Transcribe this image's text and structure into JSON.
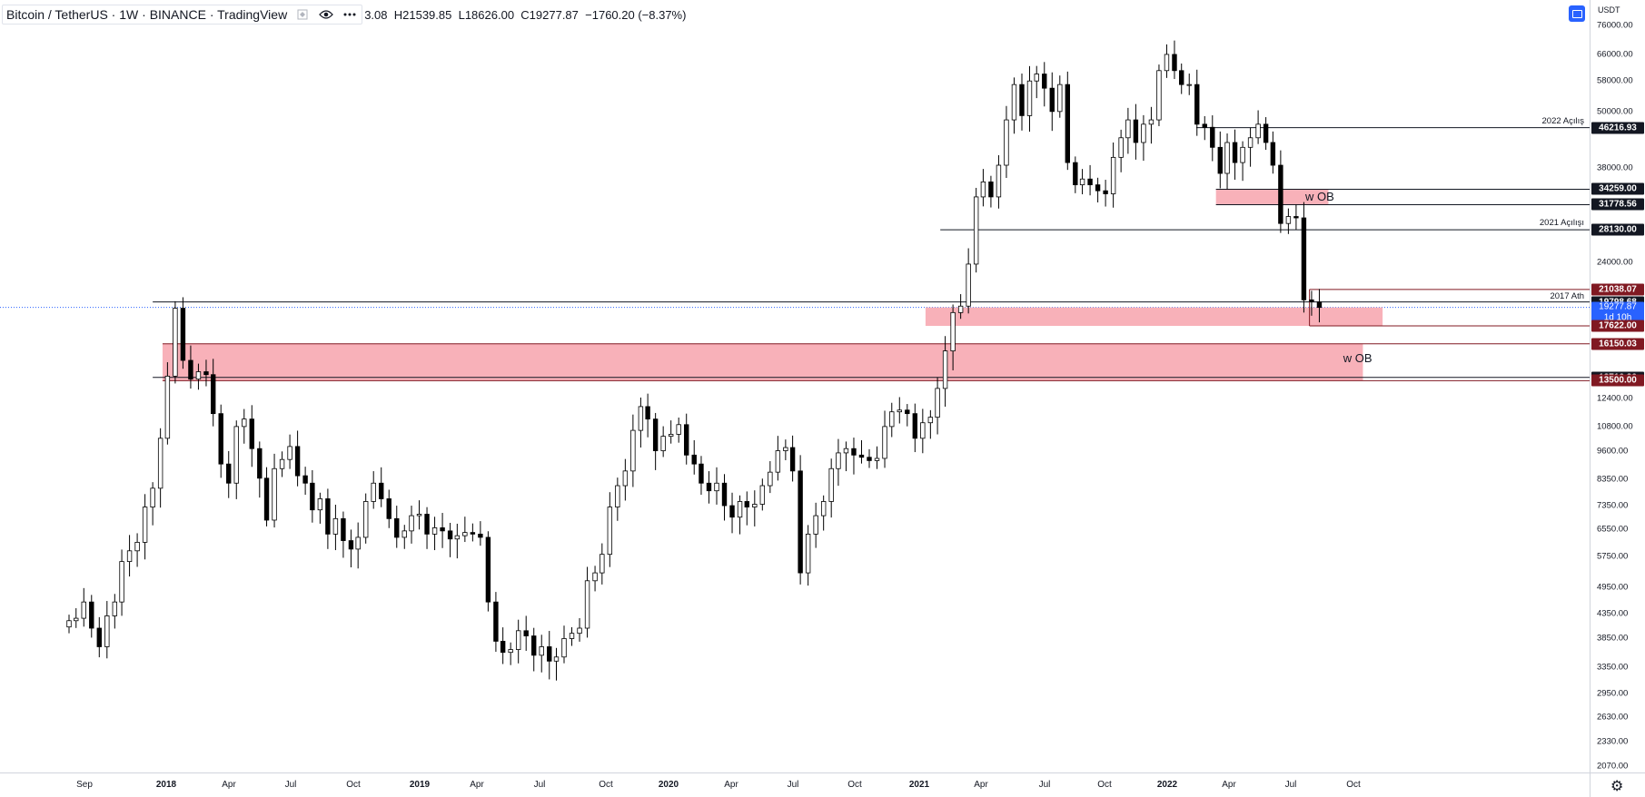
{
  "legend": {
    "symbol": "Bitcoin / TetherUS",
    "interval": "1W",
    "exchange": "BINANCE",
    "platform": "TradingView",
    "open_partial": "3.08",
    "high": "H21539.85",
    "low": "L18626.00",
    "close": "C19277.87",
    "change": "−1760.20 (−8.37%)"
  },
  "price_axis": {
    "currency": "USDT",
    "ticks": [
      "76000.00",
      "66000.00",
      "58000.00",
      "50000.00",
      "38000.00",
      "24000.00",
      "12400.00",
      "10800.00",
      "9600.00",
      "8350.00",
      "7350.00",
      "6550.00",
      "5750.00",
      "4950.00",
      "4350.00",
      "3850.00",
      "3350.00",
      "2950.00",
      "2630.00",
      "2330.00",
      "2070.00"
    ],
    "labels": [
      {
        "value": "46216.93",
        "style": "dark"
      },
      {
        "value": "34259.00",
        "style": "dark"
      },
      {
        "value": "31778.56",
        "style": "dark"
      },
      {
        "value": "28130.00",
        "style": "dark"
      },
      {
        "value": "21038.07",
        "style": "red"
      },
      {
        "value": "19798.68",
        "style": "dark"
      },
      {
        "value": "19277.87",
        "style": "blue",
        "sub": "1d 10h"
      },
      {
        "value": "17622.00",
        "style": "red"
      },
      {
        "value": "16150.03",
        "style": "red"
      },
      {
        "value": "13716.36",
        "style": "dark"
      },
      {
        "value": "13500.00",
        "style": "red"
      }
    ]
  },
  "time_axis": {
    "labels": [
      {
        "text": "Sep",
        "year": false
      },
      {
        "text": "2018",
        "year": true
      },
      {
        "text": "Apr",
        "year": false
      },
      {
        "text": "Jul",
        "year": false
      },
      {
        "text": "Oct",
        "year": false
      },
      {
        "text": "2019",
        "year": true
      },
      {
        "text": "Apr",
        "year": false
      },
      {
        "text": "Jul",
        "year": false
      },
      {
        "text": "Oct",
        "year": false
      },
      {
        "text": "2020",
        "year": true
      },
      {
        "text": "Apr",
        "year": false
      },
      {
        "text": "Jul",
        "year": false
      },
      {
        "text": "Oct",
        "year": false
      },
      {
        "text": "2021",
        "year": true
      },
      {
        "text": "Apr",
        "year": false
      },
      {
        "text": "Jul",
        "year": false
      },
      {
        "text": "Oct",
        "year": false
      },
      {
        "text": "2022",
        "year": true
      },
      {
        "text": "Apr",
        "year": false
      },
      {
        "text": "Jul",
        "year": false
      },
      {
        "text": "Oct",
        "year": false
      }
    ]
  },
  "drawings": {
    "line_2022_open": "2022 Açılış",
    "line_2021_open": "2021 Açılışı",
    "line_2017_ath": "2017 Ath",
    "zone_upper": "w OB",
    "zone_lower": "w OB"
  },
  "colors": {
    "zone_fill": "#f7a9b1",
    "up_candle": "#ffffff",
    "down_candle": "#000000",
    "accent": "#2962ff",
    "label_red": "#801922"
  },
  "icons": {
    "visibility": "eye-icon",
    "more": "more-dots-icon",
    "settings": "gear-icon",
    "fullscreen": "screen-icon"
  },
  "chart_data": {
    "type": "candlestick",
    "scale": "log",
    "ylim": [
      2070,
      76000
    ],
    "x_range": [
      "2017-08-14",
      "2022-10-31"
    ],
    "annotated_levels": [
      46216.93,
      34259.0,
      31778.56,
      28130.0,
      21038.07,
      19798.68,
      19277.87,
      17622.0,
      16150.03,
      13716.36,
      13500.0
    ],
    "zones": [
      {
        "label": "w OB",
        "from": 31778.56,
        "to": 34259.0
      },
      {
        "label": "w OB",
        "from": 13500.0,
        "to": 16150.03
      },
      {
        "label": "",
        "from": 17622.0,
        "to": 19277.87
      }
    ],
    "weekly_closes": [
      4200,
      4250,
      4600,
      4050,
      3700,
      4300,
      4600,
      5600,
      5900,
      6150,
      7300,
      8000,
      10200,
      13800,
      19200,
      14900,
      13600,
      14100,
      13900,
      11500,
      9000,
      8200,
      10800,
      11200,
      9700,
      8400,
      6850,
      8800,
      9200,
      9800,
      8500,
      8200,
      7200,
      7600,
      6400,
      6900,
      6200,
      5950,
      6300,
      7500,
      8200,
      7600,
      6900,
      6300,
      6500,
      7000,
      7050,
      6400,
      6600,
      6500,
      6250,
      6350,
      6450,
      6400,
      6300,
      4600,
      3800,
      3600,
      3650,
      4000,
      3900,
      3550,
      3700,
      3450,
      3520,
      3850,
      3950,
      4050,
      5100,
      5300,
      5800,
      7300,
      8100,
      8700,
      10600,
      11900,
      11200,
      9600,
      10300,
      10400,
      10900,
      9400,
      9000,
      8200,
      7900,
      8200,
      7350,
      6950,
      7500,
      7300,
      7400,
      8100,
      8650,
      9600,
      9750,
      8700,
      5300,
      6400,
      7000,
      7500,
      8800,
      9500,
      9700,
      9400,
      9300,
      9150,
      9250,
      10800,
      11600,
      11700,
      11500,
      10200,
      11000,
      11300,
      13000,
      15600,
      18800,
      19400,
      23800,
      33000,
      35500,
      33000,
      38500,
      48000,
      57000,
      49000,
      58000,
      60000,
      56000,
      50000,
      57000,
      39000,
      35000,
      36000,
      35000,
      34000,
      33500,
      40000,
      44000,
      48000,
      43000,
      47000,
      48000,
      61000,
      66000,
      61000,
      57000,
      57000,
      47000,
      46300,
      42000,
      37000,
      43000,
      39000,
      42000,
      44000,
      47000,
      43000,
      38500,
      29000,
      30000,
      29800,
      20000,
      19800,
      19278
    ]
  }
}
